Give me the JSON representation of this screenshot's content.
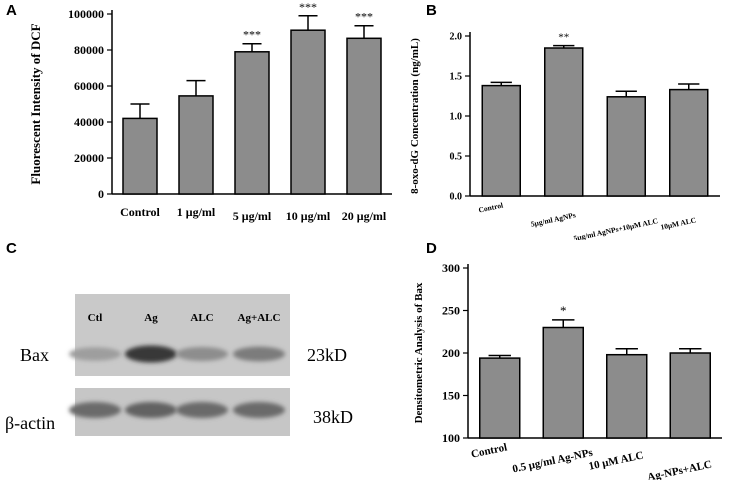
{
  "panel_letters": [
    "A",
    "B",
    "C",
    "D"
  ],
  "chart_data": [
    {
      "panel": "A",
      "type": "bar",
      "categories": [
        "Control",
        "1 μg/ml",
        "5 μg/ml",
        "10 μg/ml",
        "20 μg/ml"
      ],
      "values": [
        42000,
        54500,
        79000,
        91000,
        86500
      ],
      "errors": [
        8000,
        8500,
        4500,
        8000,
        7000
      ],
      "annotations": [
        "",
        "",
        "***",
        "***",
        "***"
      ],
      "ylabel": "Fluorescent Intensity of DCF",
      "ylim": [
        0,
        100000
      ],
      "yticks": [
        0,
        20000,
        40000,
        60000,
        80000,
        100000
      ],
      "ytick_labels": [
        "0",
        "20000",
        "40000",
        "60000",
        "80000",
        "100000"
      ],
      "bar_color": "#8c8c8c"
    },
    {
      "panel": "B",
      "type": "bar",
      "categories": [
        "Control",
        "5μg/ml AgNPs",
        "5μg/ml AgNPs+10μM ALC",
        "10μM ALC"
      ],
      "values": [
        1.38,
        1.85,
        1.24,
        1.33
      ],
      "errors": [
        0.04,
        0.03,
        0.07,
        0.07
      ],
      "annotations": [
        "",
        "**",
        "",
        ""
      ],
      "ylabel": "8-oxo-dG Concentration (ng/mL)",
      "ylim": [
        0,
        2.0
      ],
      "yticks": [
        0,
        0.5,
        1.0,
        1.5,
        2.0
      ],
      "ytick_labels": [
        "0.0",
        "0.5",
        "1.0",
        "1.5",
        "2.0"
      ],
      "bar_color": "#8c8c8c"
    },
    {
      "panel": "D",
      "type": "bar",
      "categories": [
        "Control",
        "0.5 μg/ml Ag-NPs",
        "10 μM ALC",
        "Ag-NPs+ALC"
      ],
      "values": [
        194,
        230,
        198,
        200
      ],
      "errors": [
        3,
        9,
        7,
        5
      ],
      "annotations": [
        "",
        "*",
        "",
        ""
      ],
      "ylabel": "Densitometric Analysis of Bax",
      "ylim": [
        100,
        300
      ],
      "yticks": [
        100,
        150,
        200,
        250,
        300
      ],
      "ytick_labels": [
        "100",
        "150",
        "200",
        "250",
        "300"
      ],
      "bar_color": "#8c8c8c"
    }
  ],
  "blot": {
    "lanes": [
      "Ctl",
      "Ag",
      "ALC",
      "Ag+ALC"
    ],
    "rows": [
      {
        "label": "Bax",
        "size": "23kD",
        "intensity": [
          0.25,
          0.85,
          0.35,
          0.45
        ]
      },
      {
        "label": "β-actin",
        "size": "38kD",
        "intensity": [
          0.55,
          0.6,
          0.55,
          0.55
        ]
      }
    ]
  }
}
